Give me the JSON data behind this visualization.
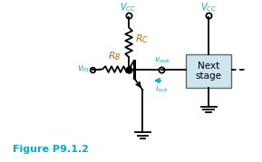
{
  "fig_label": "Figure P9.1.2",
  "bg_color": "#ffffff",
  "cyan_color": "#00aadd",
  "orange_color": "#cc6600",
  "box_fill": "#cce6f0",
  "box_edge": "#666666",
  "line_color": "#000000",
  "figsize": [
    2.89,
    1.79
  ],
  "dpi": 100
}
